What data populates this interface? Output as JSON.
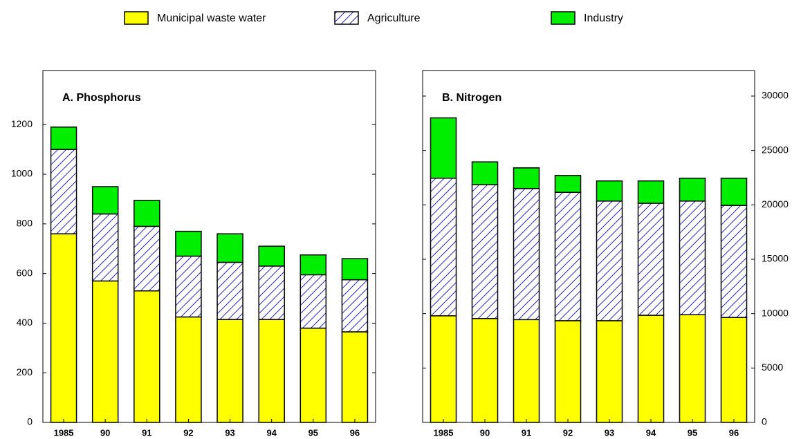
{
  "chart_data": [
    {
      "type": "bar",
      "stacked": true,
      "title": "A.  Phosphorus",
      "yaxis_side": "left",
      "categories": [
        "1985",
        "90",
        "91",
        "92",
        "93",
        "94",
        "95",
        "96"
      ],
      "ylim": [
        0,
        1418
      ],
      "yticks": [
        0,
        200,
        400,
        600,
        800,
        1000,
        1200
      ],
      "series": [
        {
          "name": "Municipal waste water",
          "color": "#ffff00",
          "values": [
            760,
            570,
            530,
            425,
            415,
            415,
            380,
            365
          ]
        },
        {
          "name": "Agriculture",
          "color": "#2a2ab8",
          "pattern": "hatch",
          "values": [
            340,
            270,
            260,
            245,
            230,
            215,
            215,
            210
          ]
        },
        {
          "name": "Industry",
          "color": "#00ee00",
          "values": [
            90,
            110,
            105,
            100,
            115,
            80,
            80,
            85
          ]
        }
      ]
    },
    {
      "type": "bar",
      "stacked": true,
      "title": "B.  Nitrogen",
      "yaxis_side": "right",
      "categories": [
        "1985",
        "90",
        "91",
        "92",
        "93",
        "94",
        "95",
        "96"
      ],
      "ylim": [
        0,
        32350
      ],
      "yticks": [
        0,
        5000,
        10000,
        15000,
        20000,
        25000,
        30000
      ],
      "series": [
        {
          "color": "#ffff00",
          "values": [
            9800,
            9550,
            9450,
            9350,
            9350,
            9850,
            9900,
            9650
          ]
        },
        {
          "color": "#2a2ab8",
          "pattern": "hatch",
          "values": [
            12650,
            12300,
            12050,
            11800,
            11000,
            10300,
            10450,
            10300
          ]
        },
        {
          "color": "#00ee00",
          "values": [
            5550,
            2100,
            1900,
            1550,
            1850,
            2050,
            2100,
            2500
          ]
        }
      ]
    }
  ]
}
